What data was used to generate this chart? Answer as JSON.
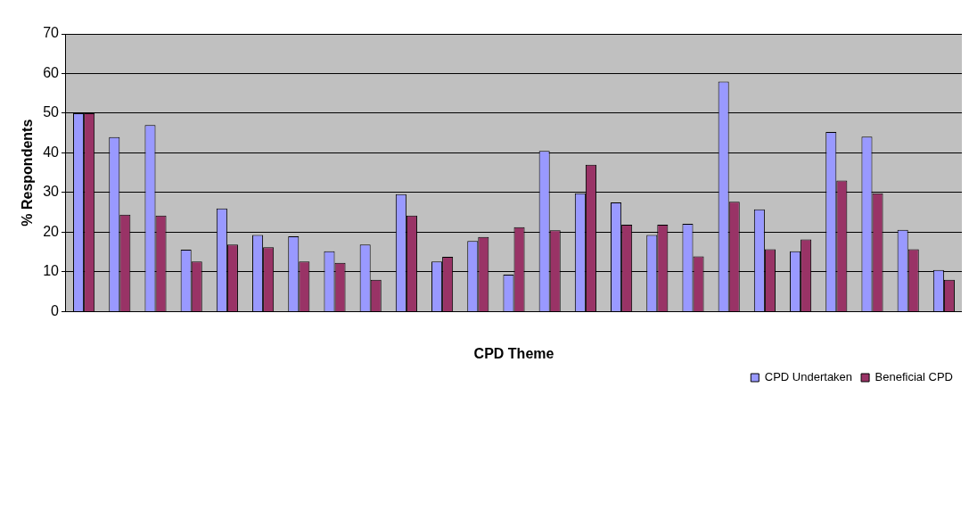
{
  "chart_data": {
    "type": "bar",
    "xlabel": "CPD Theme",
    "ylabel": "% Respondents",
    "categories": [
      null,
      null,
      null,
      null,
      null,
      null,
      null,
      null,
      null,
      null,
      null,
      null,
      null,
      null,
      null,
      null,
      null,
      null,
      null,
      null,
      null,
      null,
      null,
      null,
      null
    ],
    "series": [
      {
        "name": "CPD Undertaken",
        "color": "#9999ff",
        "values": [
          50,
          44,
          47,
          15.6,
          26,
          19.3,
          19,
          15.2,
          16.9,
          29.6,
          12.6,
          17.8,
          9.3,
          40.5,
          29.8,
          27.5,
          19.3,
          22.1,
          58,
          25.8,
          15.2,
          45.3,
          44.1,
          20.6,
          10.5
        ]
      },
      {
        "name": "Beneficial CPD",
        "color": "#993366",
        "values": [
          50,
          24.4,
          24.2,
          12.6,
          16.9,
          16.2,
          12.6,
          12.3,
          8,
          24.2,
          13.8,
          18.8,
          21.3,
          20.5,
          37,
          21.9,
          21.9,
          13.9,
          27.7,
          15.7,
          18.2,
          33,
          29.8,
          15.7,
          8
        ]
      }
    ],
    "ylim": [
      0,
      70
    ],
    "yticks": [
      0,
      10,
      20,
      30,
      40,
      50,
      60,
      70
    ],
    "grid": "y",
    "legend": "bottom right"
  }
}
